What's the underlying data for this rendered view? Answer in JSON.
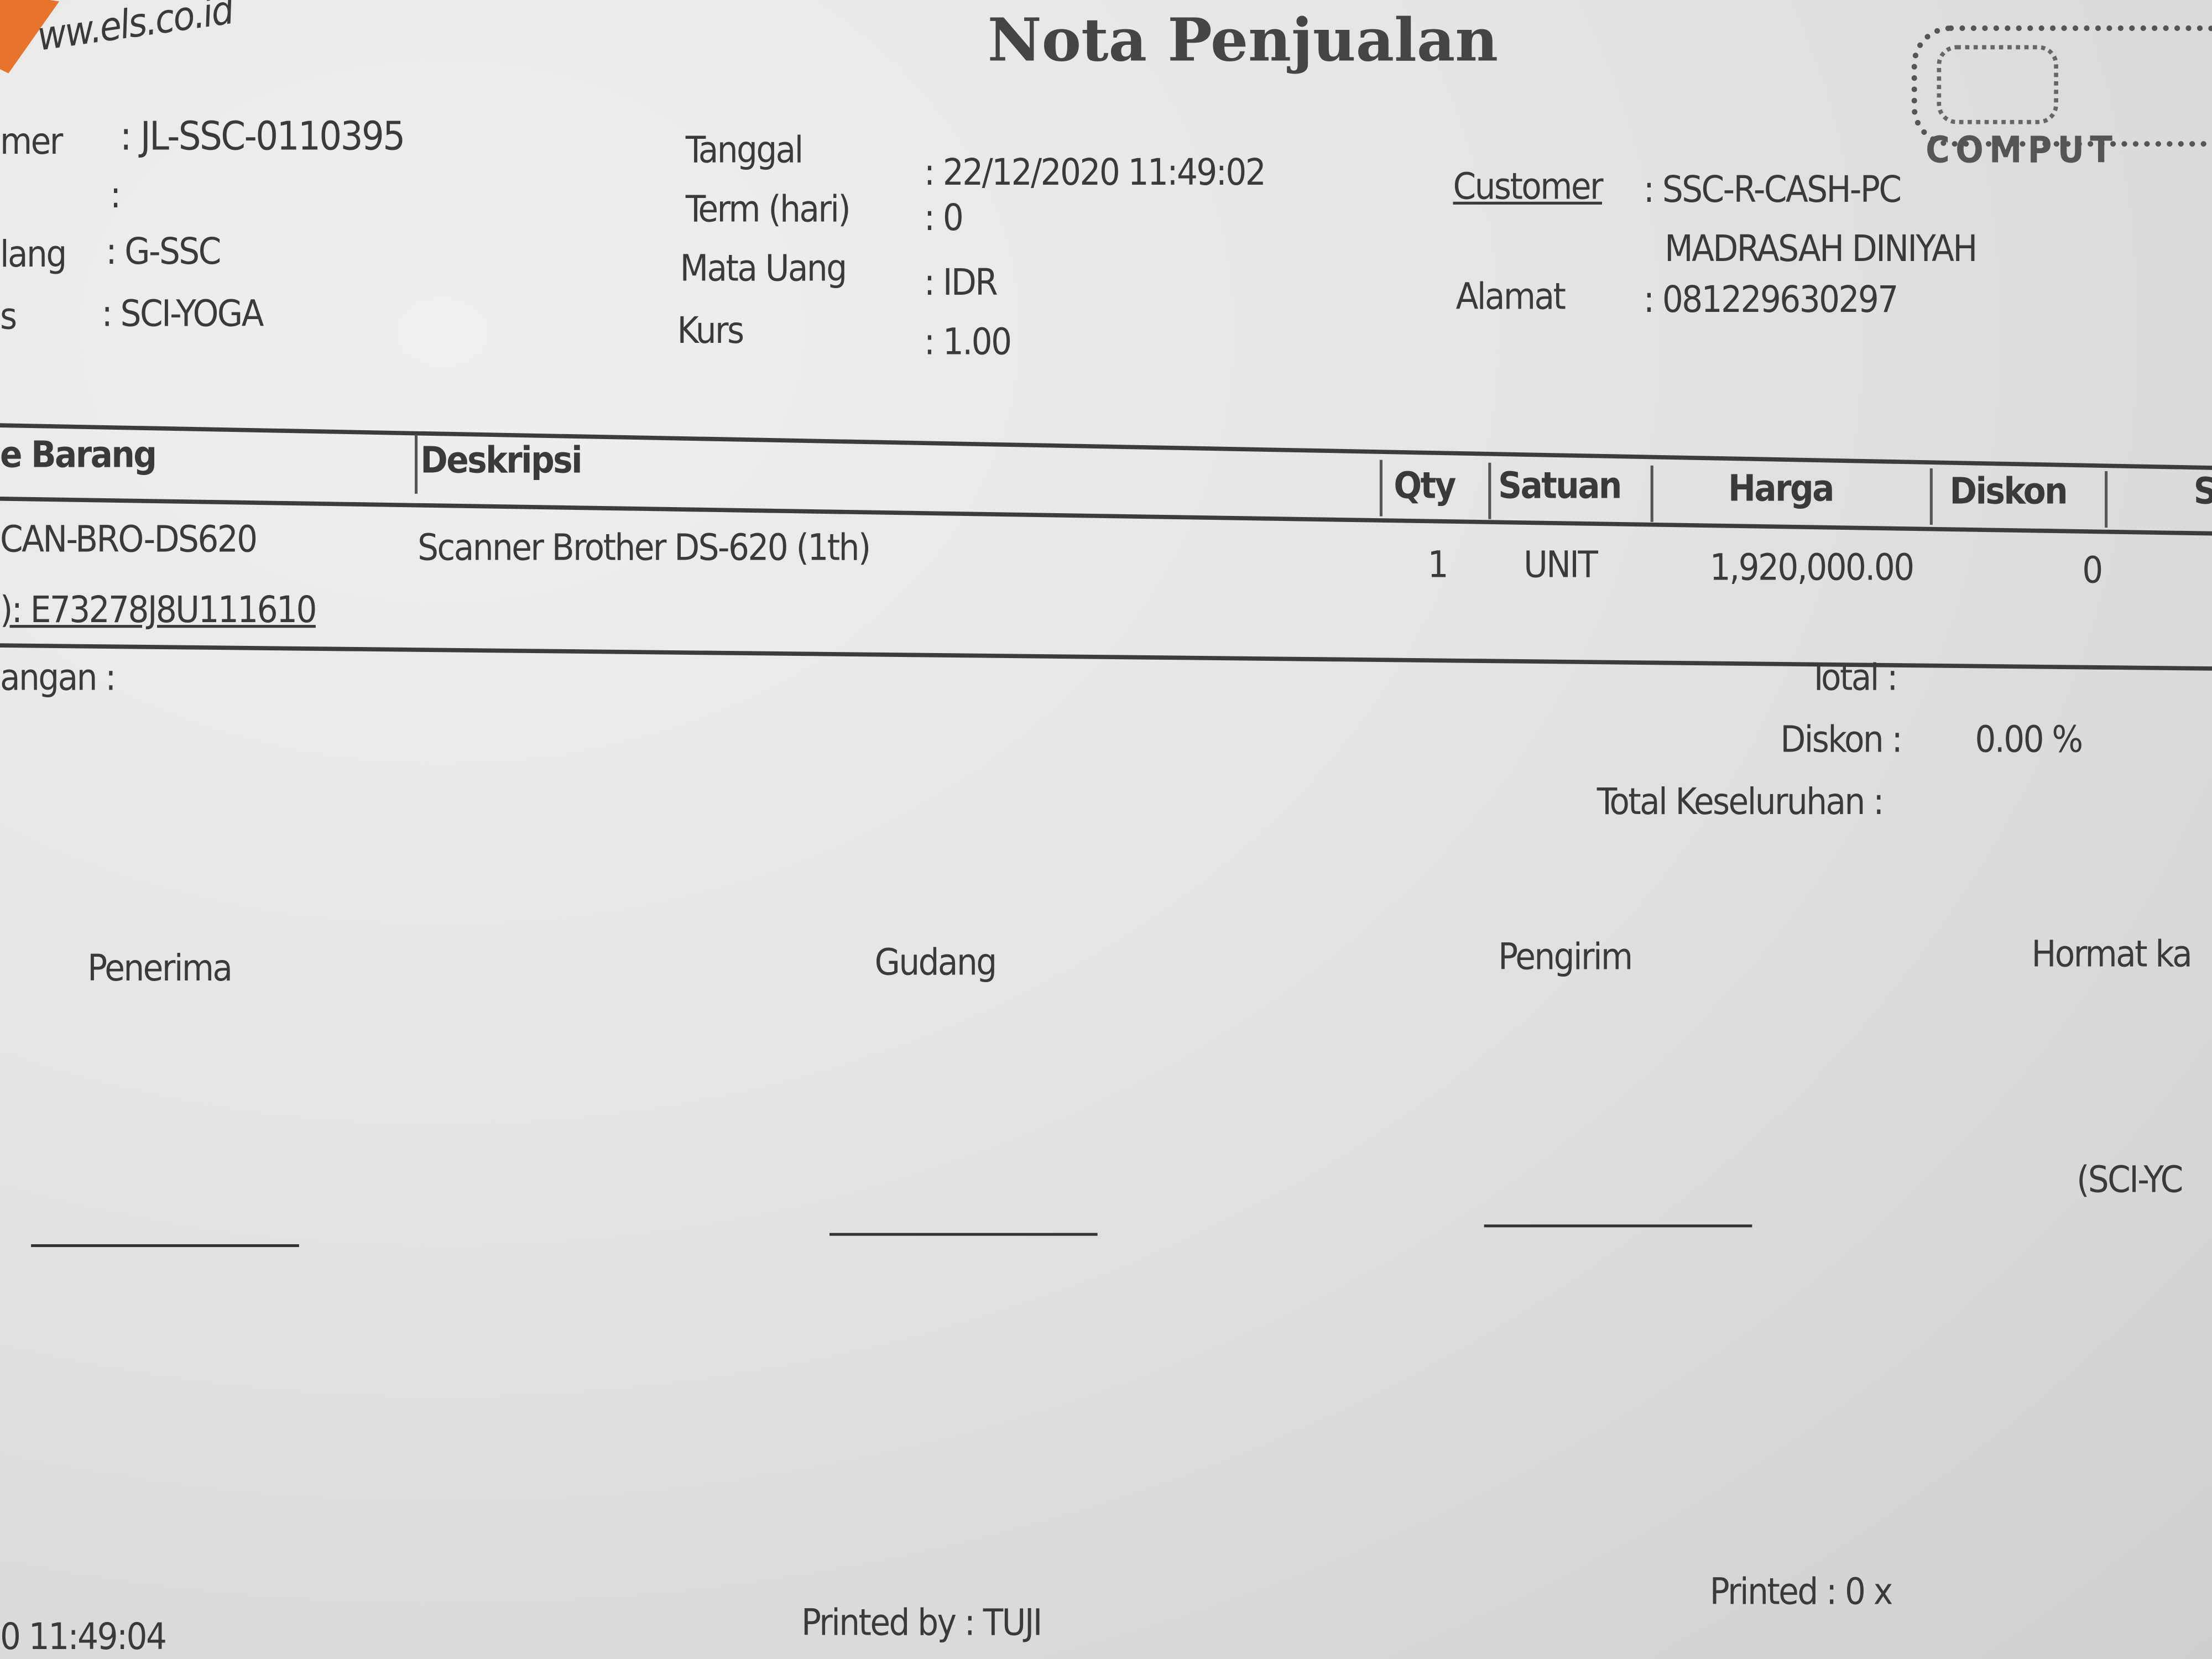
{
  "header": {
    "website": "ww.els.co.id",
    "title": "Nota Penjualan",
    "logo_text": "COMPUT",
    "brand_color": "#e8732d"
  },
  "left_info": [
    {
      "label": "mer",
      "value": ": JL-SSC-0110395"
    },
    {
      "label": "",
      "value": ":"
    },
    {
      "label": "lang",
      "value": ": G-SSC"
    },
    {
      "label": "s",
      "value": ": SCI-YOGA"
    }
  ],
  "mid_info": [
    {
      "label": "Tanggal",
      "value": ": 22/12/2020 11:49:02"
    },
    {
      "label": "Term (hari)",
      "value": ": 0"
    },
    {
      "label": "Mata Uang",
      "value": ": IDR"
    },
    {
      "label": "Kurs",
      "value": ": 1.00"
    }
  ],
  "right_info": {
    "customer_label": "Customer",
    "customer_value": ": SSC-R-CASH-PC",
    "customer_name": "MADRASAH DINIYAH",
    "alamat_label": "Alamat",
    "alamat_value": ": 081229630297"
  },
  "table": {
    "columns": [
      "e Barang",
      "Deskripsi",
      "Qty",
      "Satuan",
      "Harga",
      "Diskon",
      "S"
    ],
    "rows": [
      {
        "kode": "CAN-BRO-DS620",
        "deskripsi": "Scanner Brother DS-620 (1th)",
        "qty": "1",
        "satuan": "UNIT",
        "harga": "1,920,000.00",
        "diskon": "0"
      }
    ],
    "serial": "): E73278J8U111610"
  },
  "footer_left": {
    "keterangan": "angan :"
  },
  "summary": {
    "total_label": "Total :",
    "diskon_label": "Diskon :",
    "diskon_value": "0.00 %",
    "grand_label": "Total Keseluruhan :"
  },
  "signatures": {
    "penerima": "Penerima",
    "gudang": "Gudang",
    "pengirim": "Pengirim",
    "hormat": "Hormat ka",
    "hormat_name": "(SCI-YC"
  },
  "bottom": {
    "time": "0 11:49:04",
    "printed_by": "Printed by : TUJI",
    "printed_count": "Printed : 0 x"
  }
}
